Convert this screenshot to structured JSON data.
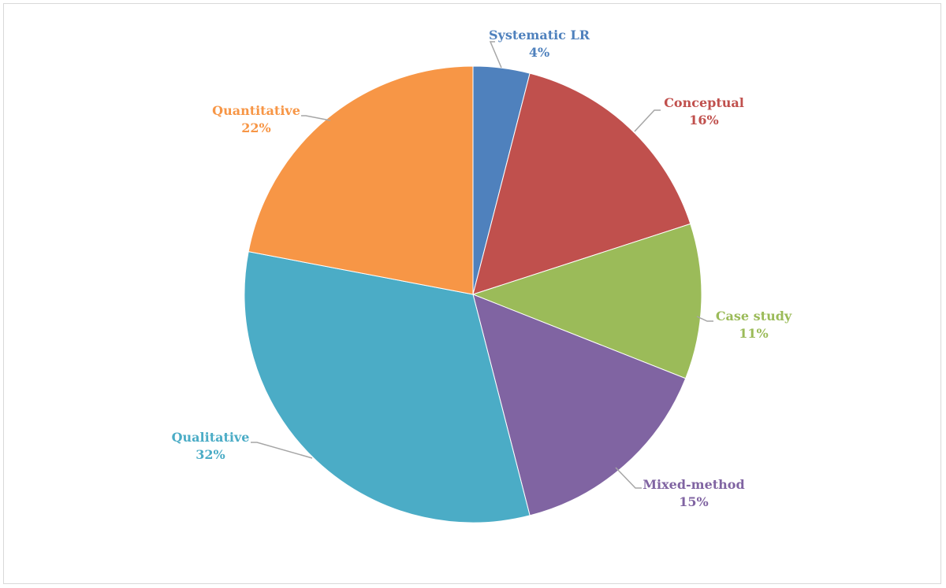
{
  "chart_data": {
    "type": "pie",
    "title": "",
    "start_angle_deg": 0,
    "direction": "clockwise",
    "legend": "none",
    "slices": [
      {
        "name": "Systematic LR",
        "value": 4,
        "label": "4%",
        "color": "#4F81BD",
        "label_color": "#4F81BD"
      },
      {
        "name": "Conceptual",
        "value": 16,
        "label": "16%",
        "color": "#C0504D",
        "label_color": "#C0504D"
      },
      {
        "name": "Case study",
        "value": 11,
        "label": "11%",
        "color": "#9BBB59",
        "label_color": "#9BBB59"
      },
      {
        "name": "Mixed-method",
        "value": 15,
        "label": "15%",
        "color": "#8064A2",
        "label_color": "#8064A2"
      },
      {
        "name": "Qualitative",
        "value": 32,
        "label": "32%",
        "color": "#4BACC6",
        "label_color": "#4BACC6"
      },
      {
        "name": "Quantitative",
        "value": 22,
        "label": "22%",
        "color": "#F79646",
        "label_color": "#F79646"
      }
    ]
  }
}
